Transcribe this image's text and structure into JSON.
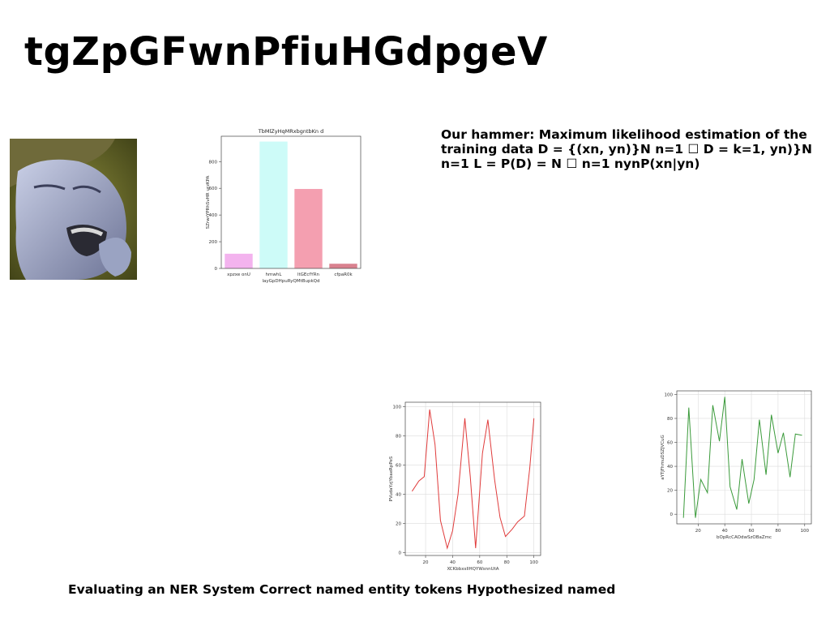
{
  "slide": {
    "title": "tgZpGFwnPfiuHGdpgeV",
    "body_text": "Our hammer: Maximum likelihood estimation of the training data D = {(xn, yn)}N n=1 ☐ D = k=1, yn)}N n=1 L = P(D) = N ☐ n=1 nynP(xn|yn)",
    "footer_text": "Evaluating an NER System Correct named entity tokens Hypothesized named"
  },
  "chart_data": [
    {
      "type": "bar",
      "title": "TbMlZyHqMRxbgntbKn d",
      "xlabel": "layGpDHpuRyQMtBupkQd",
      "ylabel": "SZrwrYPRhSvHR urzKPA",
      "categories": [
        "xpzxe onU",
        "hmwhL",
        "ltGEcfYRn",
        "cfpaR0k"
      ],
      "values": [
        110,
        950,
        595,
        35
      ],
      "colors": [
        "#f3b3ee",
        "#cdfbf8",
        "#f49fb0",
        "#d9818f"
      ],
      "ylim": [
        0,
        990
      ],
      "yticks": [
        0,
        200,
        400,
        600,
        800
      ],
      "grid": false
    },
    {
      "type": "line",
      "title": "",
      "xlabel": "XCKbbxsIlHQYWsnnUtA",
      "ylabel": "PVudaYzjYbaeRpPeS",
      "color": "#e03b3b",
      "x": [
        10,
        15,
        19,
        23,
        27,
        31,
        36,
        40,
        44,
        49,
        53,
        57,
        62,
        66,
        71,
        75,
        79,
        84,
        88,
        93,
        97,
        100
      ],
      "y": [
        42,
        49,
        52,
        98,
        74,
        22,
        3,
        15,
        40,
        92,
        52,
        3,
        68,
        91,
        50,
        24,
        11,
        16,
        21,
        25,
        58,
        92
      ],
      "xlim": [
        5,
        105
      ],
      "ylim": [
        -2,
        103
      ],
      "xticks": [
        20,
        40,
        60,
        80,
        100
      ],
      "yticks": [
        0,
        20,
        40,
        60,
        80,
        100
      ],
      "grid": true
    },
    {
      "type": "line",
      "title": "",
      "xlabel": "bOpRcCAOdwSzOBaZmc",
      "ylabel": "aYTjFhmuDSZJVCuG",
      "color": "#3a9a3a",
      "x": [
        9,
        13,
        18,
        22,
        27,
        31,
        36,
        40,
        44,
        49,
        53,
        58,
        62,
        66,
        71,
        75,
        80,
        84,
        89,
        93,
        98
      ],
      "y": [
        -3,
        89,
        -3,
        29,
        18,
        91,
        61,
        98,
        23,
        4,
        46,
        9,
        29,
        79,
        33,
        83,
        51,
        68,
        31,
        67,
        66
      ],
      "xlim": [
        4,
        105
      ],
      "ylim": [
        -8,
        103
      ],
      "xticks": [
        20,
        40,
        60,
        80,
        100
      ],
      "yticks": [
        0,
        20,
        40,
        60,
        80,
        100
      ],
      "grid": true
    }
  ]
}
